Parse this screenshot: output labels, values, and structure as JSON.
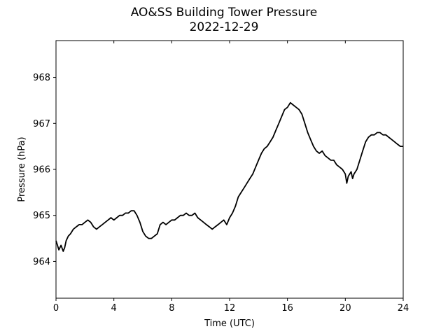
{
  "chart_data": {
    "type": "line",
    "title": "AO&SS Building Tower Pressure",
    "subtitle": "2022-12-29",
    "xlabel": "Time (UTC)",
    "ylabel": "Pressure (hPa)",
    "xlim": [
      0,
      24
    ],
    "ylim": [
      963.2,
      968.8
    ],
    "xticks": [
      0,
      4,
      8,
      12,
      16,
      20,
      24
    ],
    "yticks": [
      964,
      965,
      966,
      967,
      968
    ],
    "grid": false,
    "line_color": "#000000",
    "series": [
      {
        "x": [
          0,
          0.1,
          0.2,
          0.35,
          0.5,
          0.6,
          0.7,
          0.85,
          1.0,
          1.2,
          1.4,
          1.6,
          1.8,
          2.0,
          2.2,
          2.4,
          2.5,
          2.6,
          2.8,
          3.0,
          3.2,
          3.4,
          3.6,
          3.8,
          4.0,
          4.2,
          4.4,
          4.6,
          4.8,
          5.0,
          5.2,
          5.4,
          5.6,
          5.8,
          6.0,
          6.2,
          6.4,
          6.6,
          6.8,
          7.0,
          7.2,
          7.4,
          7.6,
          7.8,
          8.0,
          8.2,
          8.4,
          8.6,
          8.8,
          9.0,
          9.2,
          9.4,
          9.6,
          9.8,
          10.0,
          10.2,
          10.4,
          10.6,
          10.8,
          11.0,
          11.2,
          11.4,
          11.6,
          11.8,
          12.0,
          12.2,
          12.4,
          12.6,
          12.8,
          13.0,
          13.2,
          13.4,
          13.6,
          13.8,
          14.0,
          14.2,
          14.4,
          14.6,
          14.8,
          15.0,
          15.2,
          15.4,
          15.6,
          15.8,
          16.0,
          16.2,
          16.4,
          16.6,
          16.8,
          17.0,
          17.2,
          17.4,
          17.6,
          17.8,
          18.0,
          18.2,
          18.4,
          18.6,
          18.8,
          19.0,
          19.2,
          19.4,
          19.6,
          19.8,
          20.0,
          20.1,
          20.2,
          20.4,
          20.5,
          20.6,
          20.8,
          21.0,
          21.2,
          21.4,
          21.6,
          21.8,
          22.0,
          22.2,
          22.4,
          22.6,
          22.8,
          23.0,
          23.2,
          23.4,
          23.6,
          23.8,
          24.0
        ],
        "values": [
          964.45,
          964.35,
          964.25,
          964.35,
          964.22,
          964.3,
          964.45,
          964.55,
          964.6,
          964.7,
          964.75,
          964.8,
          964.8,
          964.85,
          964.9,
          964.85,
          964.8,
          964.75,
          964.7,
          964.75,
          964.8,
          964.85,
          964.9,
          964.95,
          964.9,
          964.95,
          965.0,
          965.0,
          965.05,
          965.05,
          965.1,
          965.1,
          965.0,
          964.85,
          964.65,
          964.55,
          964.5,
          964.5,
          964.55,
          964.6,
          964.8,
          964.85,
          964.8,
          964.85,
          964.9,
          964.9,
          964.95,
          965.0,
          965.0,
          965.05,
          965.0,
          965.0,
          965.05,
          964.95,
          964.9,
          964.85,
          964.8,
          964.75,
          964.7,
          964.75,
          964.8,
          964.85,
          964.9,
          964.8,
          964.95,
          965.05,
          965.2,
          965.4,
          965.5,
          965.6,
          965.7,
          965.8,
          965.9,
          966.05,
          966.2,
          966.35,
          966.45,
          966.5,
          966.6,
          966.7,
          966.85,
          967.0,
          967.15,
          967.3,
          967.35,
          967.45,
          967.4,
          967.35,
          967.3,
          967.2,
          967.0,
          966.8,
          966.65,
          966.5,
          966.4,
          966.35,
          966.4,
          966.3,
          966.25,
          966.2,
          966.2,
          966.1,
          966.05,
          966.0,
          965.9,
          965.7,
          965.85,
          965.95,
          965.8,
          965.9,
          966.0,
          966.2,
          966.4,
          966.6,
          966.7,
          966.75,
          966.75,
          966.8,
          966.8,
          966.75,
          966.75,
          966.7,
          966.65,
          966.6,
          966.55,
          966.5,
          966.5
        ]
      }
    ]
  }
}
